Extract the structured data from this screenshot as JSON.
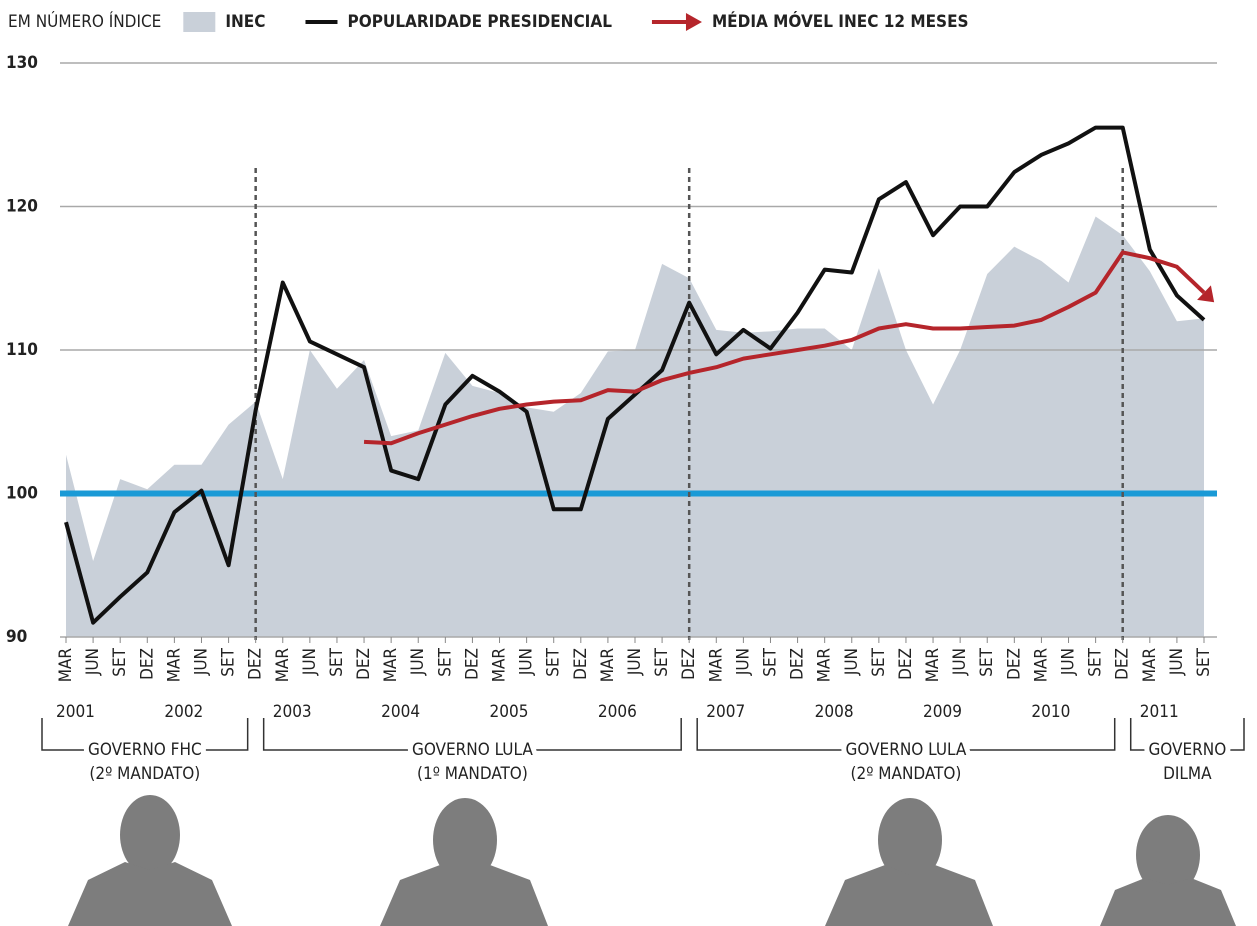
{
  "chart_data": {
    "type": "line",
    "y_label": "EM NÚMERO ÍNDICE",
    "categories": [
      "MAR",
      "JUN",
      "SET",
      "DEZ",
      "MAR",
      "JUN",
      "SET",
      "DEZ",
      "MAR",
      "JUN",
      "SET",
      "DEZ",
      "MAR",
      "JUN",
      "SET",
      "DEZ",
      "MAR",
      "JUN",
      "SET",
      "DEZ",
      "MAR",
      "JUN",
      "SET",
      "DEZ",
      "MAR",
      "JUN",
      "SET",
      "DEZ",
      "MAR",
      "JUN",
      "SET",
      "DEZ",
      "MAR",
      "JUN",
      "SET",
      "DEZ",
      "MAR",
      "JUN",
      "SET",
      "DEZ",
      "MAR",
      "JUN",
      "SET"
    ],
    "years": [
      "2001",
      "2002",
      "2003",
      "2004",
      "2005",
      "2006",
      "2007",
      "2008",
      "2009",
      "2010",
      "2011"
    ],
    "series": [
      {
        "name": "INEC",
        "kind": "area",
        "color": "#c9d0d9",
        "values": [
          102.7,
          95.3,
          101.0,
          100.3,
          102.0,
          102.0,
          104.8,
          106.4,
          101.0,
          110.0,
          107.3,
          109.3,
          104.0,
          104.4,
          109.8,
          107.5,
          107.0,
          106.0,
          105.7,
          107.0,
          109.9,
          110.0,
          116.0,
          115.0,
          111.4,
          111.2,
          111.3,
          111.5,
          111.5,
          110.0,
          115.7,
          110.0,
          106.2,
          110.0,
          115.3,
          117.2,
          116.2,
          114.7,
          119.3,
          118.0,
          115.5,
          112.0,
          112.2
        ]
      },
      {
        "name": "POPULARIDADE PRESIDENCIAL",
        "kind": "line",
        "color": "#111111",
        "values": [
          98.0,
          91.0,
          92.8,
          94.5,
          98.7,
          100.2,
          95.0,
          105.8,
          114.7,
          110.6,
          109.7,
          108.8,
          101.6,
          101.0,
          106.2,
          108.2,
          107.1,
          105.7,
          98.9,
          98.9,
          105.2,
          106.9,
          108.6,
          113.3,
          109.7,
          111.4,
          110.1,
          112.6,
          115.6,
          115.4,
          120.5,
          121.7,
          118.0,
          120.0,
          120.0,
          122.4,
          123.6,
          124.4,
          125.5,
          125.5,
          117.0,
          113.8,
          112.1
        ]
      },
      {
        "name": "MÉDIA MÓVEL INEC 12 MESES",
        "kind": "arrow",
        "color": "#b5252b",
        "values": [
          null,
          null,
          null,
          null,
          null,
          null,
          null,
          null,
          null,
          null,
          null,
          103.6,
          103.5,
          104.2,
          104.8,
          105.4,
          105.9,
          106.2,
          106.4,
          106.5,
          107.2,
          107.1,
          107.9,
          108.4,
          108.8,
          109.4,
          109.7,
          110.0,
          110.3,
          110.7,
          111.5,
          111.8,
          111.5,
          111.5,
          111.6,
          111.7,
          112.1,
          113.0,
          114.0,
          116.8,
          116.4,
          115.8,
          114.0
        ]
      }
    ],
    "reference_line": {
      "value": 100,
      "color": "#1a9ad6"
    },
    "ylim": [
      90,
      130
    ],
    "yticks": [
      90,
      100,
      110,
      120,
      130
    ],
    "grid": true,
    "terms": [
      {
        "name": "GOVERNO FHC",
        "detail": "(2º MANDATO)"
      },
      {
        "name": "GOVERNO LULA",
        "detail": "(1º MANDATO)"
      },
      {
        "name": "GOVERNO LULA",
        "detail": "(2º MANDATO)"
      },
      {
        "name": "GOVERNO",
        "detail": "DILMA"
      }
    ]
  }
}
